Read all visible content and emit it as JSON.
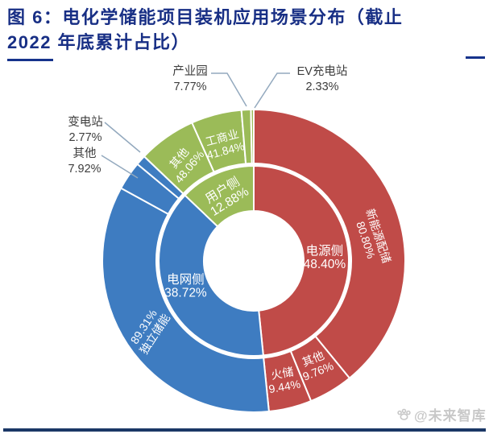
{
  "title": {
    "line1": "图 6：电化学储能项目装机应用场景分布（截止",
    "line2": "2022 年底累计占比）"
  },
  "watermark": {
    "text": "@未来智库",
    "icon": "paw-icon"
  },
  "colors": {
    "title": "#182F85",
    "red": "#C04B48",
    "blue": "#3E7CC1",
    "green": "#9BBB58",
    "inside_label_text": "#FFFFFF",
    "callout_text": "#3D3D3D",
    "leader_line": "#93A9BE",
    "separator": "#FFFFFF",
    "bottom_rule": "#1B3766",
    "watermark": "#C8C8C8"
  },
  "chart_data": {
    "type": "pie",
    "subtype": "nested-donut-two-level",
    "unit": "%",
    "start_angle": "12-o'clock, clockwise",
    "legend_position": "none",
    "notes": "outer ring values are shares within each inner (parent) segment; thin outer slices labelled via leader-line callouts",
    "inner_ring": [
      {
        "id": "power-side",
        "label": "电源侧",
        "value": 48.4,
        "pct_text": "48.40%",
        "color_key": "red"
      },
      {
        "id": "grid-side",
        "label": "电网侧",
        "value": 38.72,
        "pct_text": "38.72%",
        "color_key": "blue"
      },
      {
        "id": "user-side",
        "label": "用户侧",
        "value": 12.88,
        "pct_text": "12.88%",
        "color_key": "green"
      }
    ],
    "outer_ring": [
      {
        "id": "renewable-paired-storage",
        "parent": "power-side",
        "label": "新能源配储",
        "value": 80.8,
        "pct_text": "80.80%"
      },
      {
        "id": "power-other",
        "parent": "power-side",
        "label": "其他",
        "value": 9.76,
        "pct_text": "9.76%"
      },
      {
        "id": "thermal-storage",
        "parent": "power-side",
        "label": "火储",
        "value": 9.44,
        "pct_text": "9.44%"
      },
      {
        "id": "independent-storage",
        "parent": "grid-side",
        "label": "独立储能",
        "value": 89.31,
        "pct_text": "89.31%"
      },
      {
        "id": "grid-other",
        "parent": "grid-side",
        "label": "其他",
        "value": 7.92,
        "pct_text": "7.92%"
      },
      {
        "id": "substation",
        "parent": "grid-side",
        "label": "变电站",
        "value": 2.77,
        "pct_text": "2.77%"
      },
      {
        "id": "user-other",
        "parent": "user-side",
        "label": "其他",
        "value": 48.06,
        "pct_text": "48.06%"
      },
      {
        "id": "industrial-commercial",
        "parent": "user-side",
        "label": "工商业",
        "value": 41.84,
        "pct_text": "41.84%"
      },
      {
        "id": "industrial-park",
        "parent": "user-side",
        "label": "产业园",
        "value": 7.77,
        "pct_text": "7.77%"
      },
      {
        "id": "ev-charging-station",
        "parent": "user-side",
        "label": "EV充电站",
        "value": 2.33,
        "pct_text": "2.33%"
      }
    ]
  }
}
